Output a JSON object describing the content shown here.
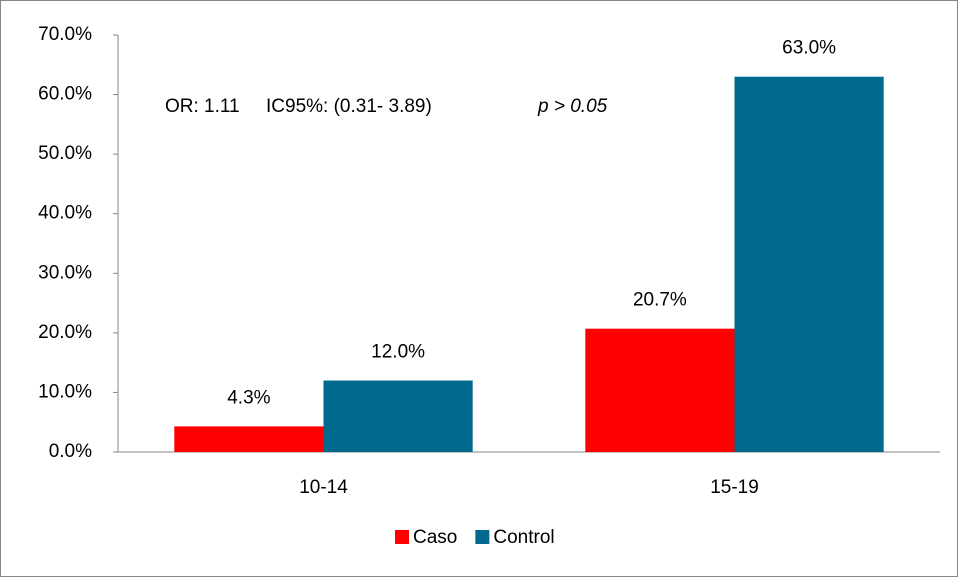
{
  "chart_data": {
    "type": "bar",
    "categories": [
      "10-14",
      "15-19"
    ],
    "series": [
      {
        "name": "Caso",
        "color": "#ff0000",
        "values": [
          4.3,
          20.7
        ],
        "value_labels": [
          "4.3%",
          "20.7%"
        ]
      },
      {
        "name": "Control",
        "color": "#006a8e",
        "values": [
          12.0,
          63.0
        ],
        "value_labels": [
          "12.0%",
          "63.0%"
        ]
      }
    ],
    "ylim": [
      0,
      70
    ],
    "yticks": [
      {
        "value": 0,
        "label": "0.0%"
      },
      {
        "value": 10,
        "label": "10.0%"
      },
      {
        "value": 20,
        "label": "20.0%"
      },
      {
        "value": 30,
        "label": "30.0%"
      },
      {
        "value": 40,
        "label": "40.0%"
      },
      {
        "value": 50,
        "label": "50.0%"
      },
      {
        "value": 60,
        "label": "60.0%"
      },
      {
        "value": 70,
        "label": "70.0%"
      }
    ],
    "annotations": [
      "OR: 1.11     IC95%: (0.31- 3.89)",
      "p > 0.05"
    ],
    "grid": false,
    "legend": "bottom"
  }
}
